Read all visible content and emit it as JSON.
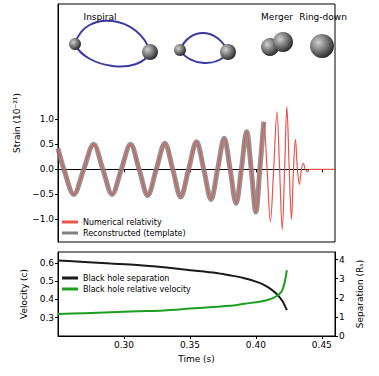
{
  "chart_data": [
    {
      "type": "line",
      "ylabel": "Strain (10⁻²¹)",
      "annotations": [
        "Inspiral",
        "Merger",
        "Ring-down"
      ],
      "x": [
        0.25,
        0.2545,
        0.262,
        0.2695,
        0.277,
        0.284,
        0.291,
        0.298,
        0.305,
        0.3115,
        0.318,
        0.3245,
        0.331,
        0.337,
        0.343,
        0.349,
        0.355,
        0.3605,
        0.366,
        0.371,
        0.376,
        0.3805,
        0.385,
        0.389,
        0.393,
        0.3965,
        0.4,
        0.403,
        0.406,
        0.4085,
        0.411,
        0.4135,
        0.416,
        0.418,
        0.42,
        0.4218,
        0.4235,
        0.4253,
        0.427,
        0.4285,
        0.43,
        0.4315,
        0.433,
        0.4345,
        0.436,
        0.4375,
        0.439,
        0.441,
        0.46
      ],
      "series": [
        {
          "name": "Numerical relativity",
          "color": "#e8544e",
          "line_style": "thin",
          "values": [
            0.42,
            0,
            -0.5,
            0,
            0.5,
            0,
            -0.5,
            0,
            0.5,
            0,
            -0.52,
            0,
            0.52,
            0,
            -0.55,
            0,
            0.55,
            0,
            -0.6,
            0,
            0.62,
            0,
            -0.68,
            0,
            0.75,
            0,
            -0.85,
            0,
            0.95,
            0,
            -1.05,
            0,
            1.15,
            0,
            -1.2,
            0,
            1.25,
            0,
            -1.0,
            0,
            0.6,
            0,
            -0.3,
            0,
            0.12,
            0,
            -0.05,
            0,
            0
          ]
        },
        {
          "name": "Reconstructed (template)",
          "color": "#808080",
          "line_style": "thick",
          "values": [
            0.42,
            0,
            -0.5,
            0,
            0.5,
            0,
            -0.5,
            0,
            0.5,
            0,
            -0.52,
            0,
            0.52,
            0,
            -0.55,
            0,
            0.55,
            0,
            -0.6,
            0,
            0.62,
            0,
            -0.68,
            0,
            0.75,
            0,
            -0.85,
            0,
            0.95,
            null,
            null,
            null,
            null,
            null,
            null,
            null,
            null,
            null,
            null,
            null,
            null,
            null,
            null,
            null,
            null,
            null,
            null,
            null,
            null
          ]
        }
      ],
      "xlim": [
        0.25,
        0.46
      ],
      "xticks": [
        0.3,
        0.35,
        0.4,
        0.45
      ],
      "ylim": [
        -1.45,
        3.3
      ],
      "yticks": [
        {
          "value": -1,
          "label": "−1.0"
        },
        {
          "value": -0.5,
          "label": "−0.5"
        },
        {
          "value": 0,
          "label": "0.0"
        },
        0.5,
        {
          "value": 1,
          "label": "1.0"
        }
      ],
      "legend": "lower left",
      "tick_labels": "y"
    },
    {
      "type": "line",
      "xlabel": "Time (s)",
      "ylabel": "Velocity (c)",
      "y2label": "Separation (Rₛ)",
      "x": [
        0.25,
        0.27,
        0.29,
        0.31,
        0.33,
        0.35,
        0.37,
        0.38,
        0.39,
        0.4,
        0.405,
        0.41,
        0.415,
        0.42,
        0.4235
      ],
      "series": [
        {
          "name": "Black hole separation",
          "color": "#1a1a1a",
          "axis": "y2",
          "values": [
            3.95,
            3.88,
            3.8,
            3.72,
            3.6,
            3.45,
            3.3,
            3.18,
            3.05,
            2.85,
            2.72,
            2.52,
            2.25,
            1.85,
            1.35
          ]
        },
        {
          "name": "Black hole relative velocity",
          "color": "#1e9e1e",
          "values": [
            0.32,
            0.325,
            0.33,
            0.335,
            0.34,
            0.35,
            0.36,
            0.365,
            0.375,
            0.385,
            0.39,
            0.4,
            0.415,
            0.45,
            0.56
          ]
        }
      ],
      "xlim": [
        0.25,
        0.46
      ],
      "xticks": [
        {
          "value": 0.3,
          "label": "0.30"
        },
        0.35,
        {
          "value": 0.4,
          "label": "0.40"
        },
        0.45
      ],
      "ylim": [
        0.2,
        0.66
      ],
      "yticks": [
        0.3,
        0.4,
        0.5,
        0.6
      ],
      "y2lim": [
        0,
        4.4
      ],
      "y2ticks": [
        0,
        1,
        2,
        3,
        4
      ],
      "legend": "upper left"
    }
  ]
}
